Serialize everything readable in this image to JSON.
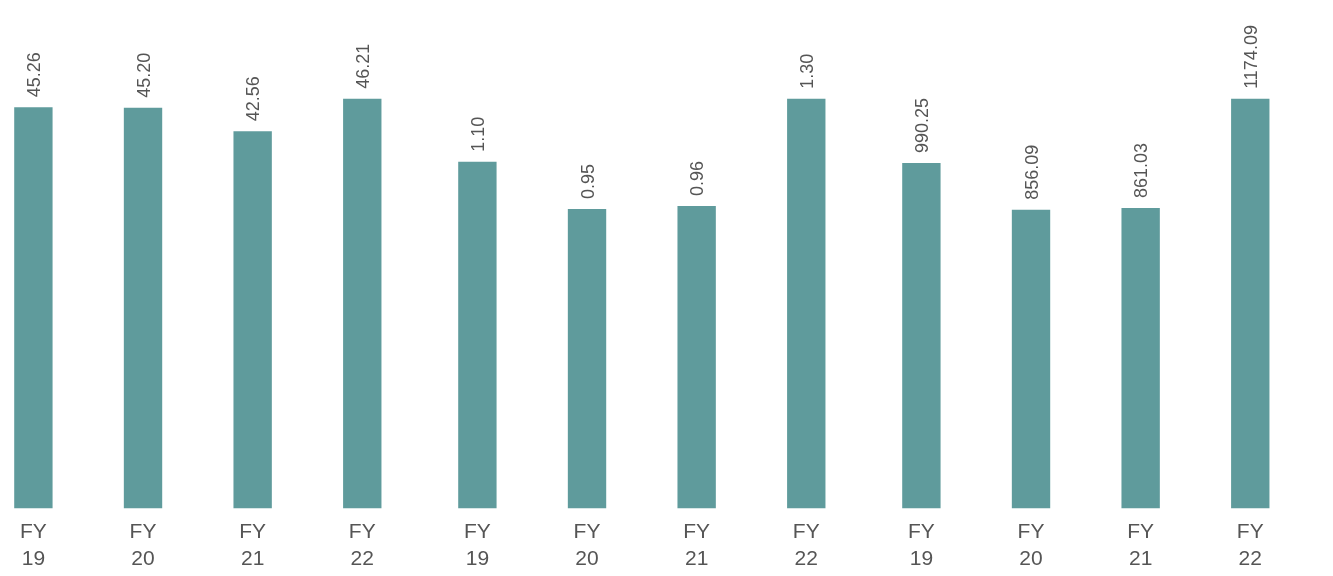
{
  "chart_data": [
    {
      "type": "bar",
      "categories": [
        "FY\n19",
        "FY\n20",
        "FY\n21",
        "FY\n22"
      ],
      "values": [
        45.26,
        45.2,
        42.56,
        46.21
      ],
      "value_labels": [
        "45.26",
        "45.20",
        "42.56",
        "46.21"
      ],
      "color": "#5f9b9c"
    },
    {
      "type": "bar",
      "categories": [
        "FY\n19",
        "FY\n20",
        "FY\n21",
        "FY\n22"
      ],
      "values": [
        1.1,
        0.95,
        0.96,
        1.3
      ],
      "value_labels": [
        "1.10",
        "0.95",
        "0.96",
        "1.30"
      ],
      "color": "#5f9b9c"
    },
    {
      "type": "bar",
      "categories": [
        "FY\n19",
        "FY\n20",
        "FY\n21",
        "FY\n22"
      ],
      "values": [
        990.25,
        856.09,
        861.03,
        1174.09
      ],
      "value_labels": [
        "990.25",
        "856.09",
        "861.03",
        "1174.09"
      ],
      "color": "#5f9b9c"
    }
  ]
}
